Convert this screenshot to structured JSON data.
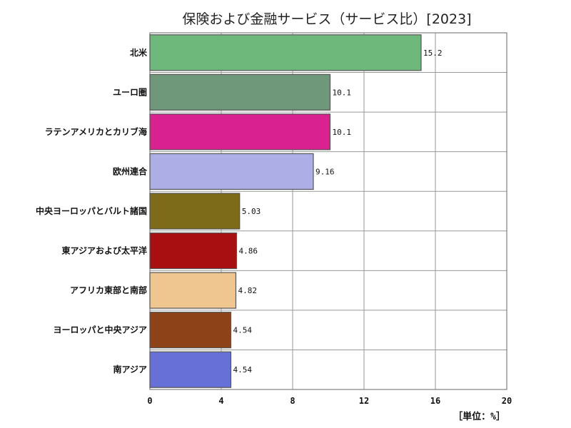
{
  "chart_data": {
    "type": "bar",
    "orientation": "horizontal",
    "title": "保険および金融サービス（サービス比）[2023]",
    "unit_label": "［単位：%］",
    "xlim": [
      0,
      20
    ],
    "x_ticks": [
      "0",
      "4",
      "8",
      "12",
      "16",
      "20"
    ],
    "grid": true,
    "categories": [
      "北米",
      "ユーロ圏",
      "ラテンアメリカとカリブ海",
      "欧州連合",
      "中央ヨーロッパとバルト諸国",
      "東アジアおよび太平洋",
      "アフリカ東部と南部",
      "ヨーロッパと中央アジア",
      "南アジア"
    ],
    "values": [
      15.2,
      10.1,
      10.1,
      9.16,
      5.03,
      4.86,
      4.82,
      4.54,
      4.54
    ],
    "value_labels": [
      "15.2",
      "10.1",
      "10.1",
      "9.16",
      "5.03",
      "4.86",
      "4.82",
      "4.54",
      "4.54"
    ],
    "colors": [
      "#6db87a",
      "#6f977a",
      "#d9228f",
      "#aeaee6",
      "#7d6b1a",
      "#a80f10",
      "#efc590",
      "#8e4218",
      "#6670d6"
    ]
  }
}
